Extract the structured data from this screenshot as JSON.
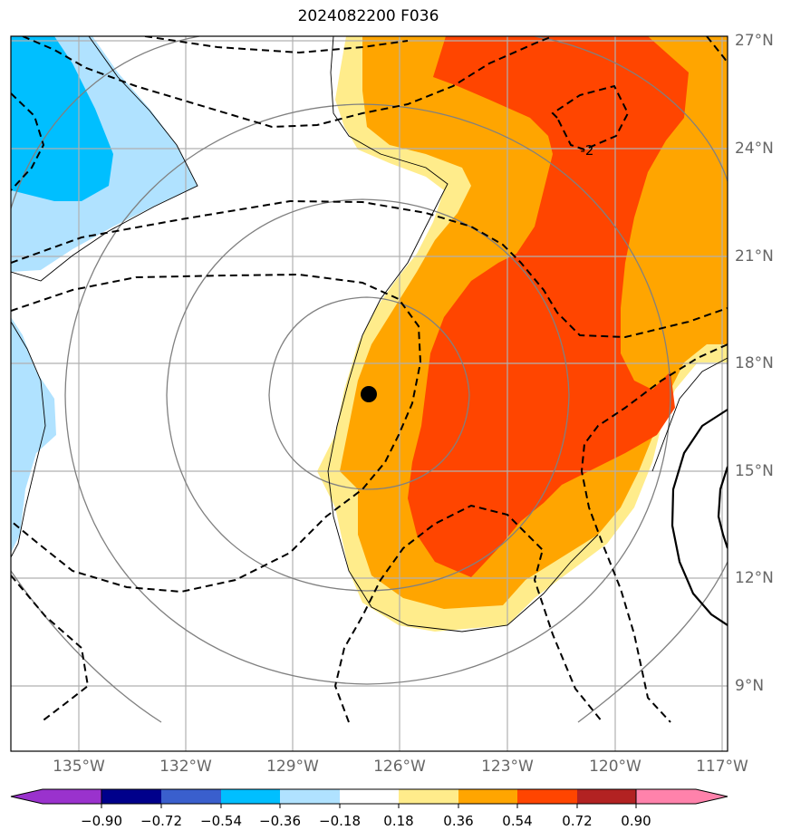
{
  "title": "2024082200 F036",
  "lat_labels": [
    "27°N",
    "24°N",
    "21°N",
    "18°N",
    "15°N",
    "12°N",
    "9°N"
  ],
  "lon_labels": [
    "135°W",
    "132°W",
    "129°W",
    "126°W",
    "123°W",
    "120°W",
    "117°W"
  ],
  "contour_label": "-2",
  "colorbar": {
    "colors": [
      "#9a32cd",
      "#00008b",
      "#3a5fcd",
      "#00bfff",
      "#b0e2ff",
      "#ffffff",
      "#ffec8b",
      "#ffa500",
      "#ff4500",
      "#b22222",
      "#ff82ab"
    ],
    "tick_labels": [
      "−0.90",
      "−0.72",
      "−0.54",
      "−0.36",
      "−0.18",
      "0.18",
      "0.36",
      "0.54",
      "0.72",
      "0.90"
    ]
  },
  "map": {
    "projection": "lat-lon",
    "lon_range": [
      -137,
      -117
    ],
    "lat_range": [
      7.5,
      27.5
    ],
    "gridlines": true,
    "storm_center": {
      "lon": -126.8,
      "lat": 17.1
    },
    "fill_colors": {
      "light_blue": "#b0e2ff",
      "blue": "#00bfff",
      "yellow": "#ffec8b",
      "orange": "#ffa500",
      "red": "#ff4500"
    },
    "contour_colors": {
      "gray": "#808080",
      "black": "#000000"
    }
  }
}
